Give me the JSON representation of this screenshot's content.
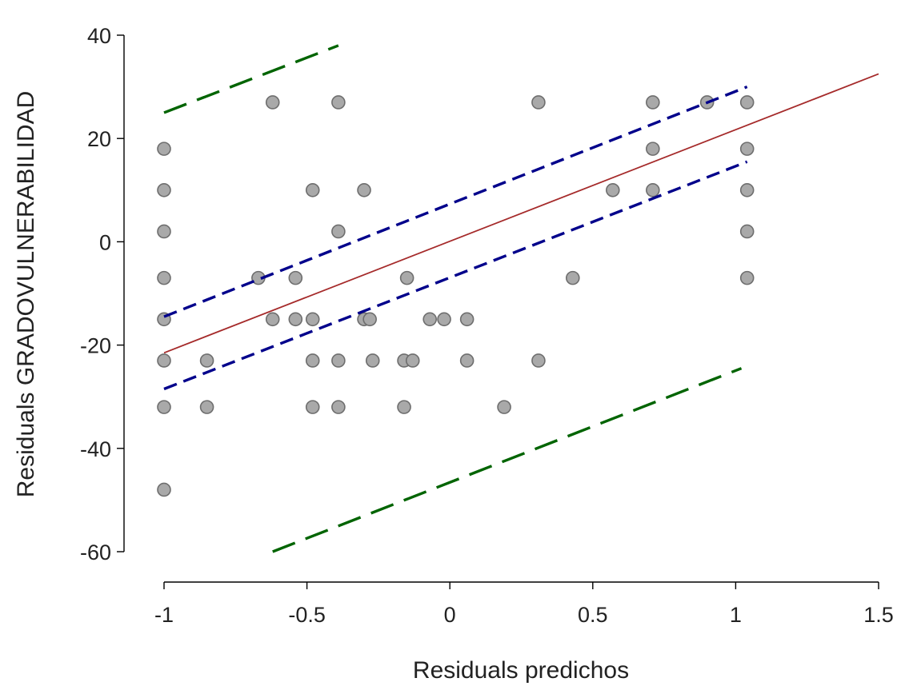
{
  "chart_data": {
    "type": "scatter",
    "xlabel": "Residuals predichos",
    "ylabel": "Residuals GRADOVULNERABILIDAD",
    "xlim": [
      -1,
      1.5
    ],
    "ylim": [
      -60,
      40
    ],
    "xticks": [
      -1,
      -0.5,
      0,
      0.5,
      1,
      1.5
    ],
    "yticks": [
      -60,
      -40,
      -20,
      0,
      20,
      40
    ],
    "xtick_labels": [
      "-1",
      "-0.5",
      "0",
      "0.5",
      "1",
      "1.5"
    ],
    "ytick_labels": [
      "-60",
      "-40",
      "-20",
      "0",
      "20",
      "40"
    ],
    "points": [
      {
        "x": -1.0,
        "y": 18
      },
      {
        "x": -1.0,
        "y": 10
      },
      {
        "x": -1.0,
        "y": 2
      },
      {
        "x": -1.0,
        "y": -7
      },
      {
        "x": -1.0,
        "y": -15
      },
      {
        "x": -1.0,
        "y": -23
      },
      {
        "x": -1.0,
        "y": -32
      },
      {
        "x": -1.0,
        "y": -48
      },
      {
        "x": -0.85,
        "y": -23
      },
      {
        "x": -0.85,
        "y": -32
      },
      {
        "x": -0.67,
        "y": -7
      },
      {
        "x": -0.62,
        "y": 27
      },
      {
        "x": -0.62,
        "y": -15
      },
      {
        "x": -0.54,
        "y": -7
      },
      {
        "x": -0.54,
        "y": -15
      },
      {
        "x": -0.48,
        "y": 10
      },
      {
        "x": -0.48,
        "y": -15
      },
      {
        "x": -0.48,
        "y": -23
      },
      {
        "x": -0.48,
        "y": -32
      },
      {
        "x": -0.39,
        "y": 27
      },
      {
        "x": -0.39,
        "y": 2
      },
      {
        "x": -0.39,
        "y": -23
      },
      {
        "x": -0.39,
        "y": -32
      },
      {
        "x": -0.3,
        "y": 10
      },
      {
        "x": -0.3,
        "y": -15
      },
      {
        "x": -0.28,
        "y": -15
      },
      {
        "x": -0.27,
        "y": -23
      },
      {
        "x": -0.16,
        "y": -23
      },
      {
        "x": -0.16,
        "y": -32
      },
      {
        "x": -0.15,
        "y": -7
      },
      {
        "x": -0.13,
        "y": -23
      },
      {
        "x": -0.07,
        "y": -15
      },
      {
        "x": -0.02,
        "y": -15
      },
      {
        "x": 0.06,
        "y": -15
      },
      {
        "x": 0.06,
        "y": -23
      },
      {
        "x": 0.19,
        "y": -32
      },
      {
        "x": 0.31,
        "y": 27
      },
      {
        "x": 0.31,
        "y": -23
      },
      {
        "x": 0.43,
        "y": -7
      },
      {
        "x": 0.57,
        "y": 10
      },
      {
        "x": 0.71,
        "y": 27
      },
      {
        "x": 0.71,
        "y": 18
      },
      {
        "x": 0.71,
        "y": 10
      },
      {
        "x": 0.9,
        "y": 27
      },
      {
        "x": 1.04,
        "y": 27
      },
      {
        "x": 1.04,
        "y": 18
      },
      {
        "x": 1.04,
        "y": 10
      },
      {
        "x": 1.04,
        "y": 2
      },
      {
        "x": 1.04,
        "y": -7
      }
    ],
    "fit_line": {
      "x": [
        -1.0,
        1.5
      ],
      "y": [
        -21.5,
        32.5
      ],
      "color": "#a52a2a",
      "style": "solid"
    },
    "confidence_band": {
      "upper": {
        "x": [
          -1.0,
          1.04
        ],
        "y": [
          -14.5,
          30
        ]
      },
      "lower": {
        "x": [
          -1.0,
          1.04
        ],
        "y": [
          -28.5,
          15.5
        ]
      },
      "color": "#00008b",
      "style": "dashed"
    },
    "prediction_band": {
      "upper": {
        "x": [
          -1.0,
          -0.39
        ],
        "y": [
          25,
          38
        ]
      },
      "lower": {
        "x": [
          -0.62,
          1.02
        ],
        "y": [
          -60,
          -24.5
        ]
      },
      "color": "#006400",
      "style": "long-dashed"
    },
    "point_fill": "#a9a9a9",
    "point_stroke": "#6e6e6e",
    "grid": false,
    "legend": "none"
  }
}
